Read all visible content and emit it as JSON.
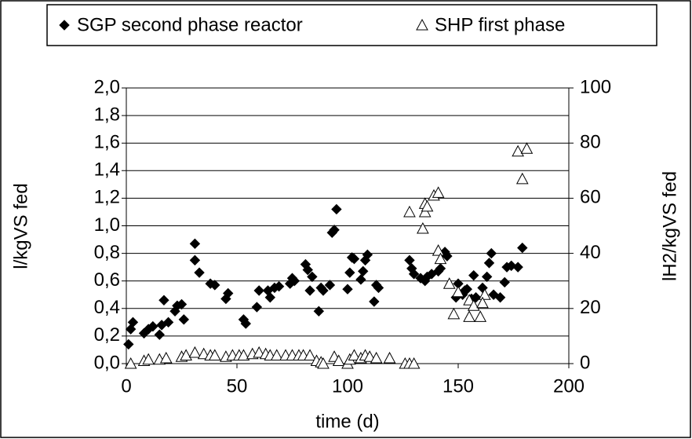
{
  "chart_data": {
    "type": "scatter",
    "xlabel": "time (d)",
    "ylabel": "l/kgVS fed",
    "y2label": "lH2/kgVS fed",
    "xlim": [
      0,
      200
    ],
    "xticks": [
      0,
      50,
      100,
      150,
      200
    ],
    "ylim": [
      0,
      2
    ],
    "yticks": [
      {
        "value": 0,
        "label": "0,0"
      },
      {
        "value": 0.2,
        "label": "0,2"
      },
      {
        "value": 0.4,
        "label": "0,4"
      },
      {
        "value": 0.6,
        "label": "0,6"
      },
      {
        "value": 0.8,
        "label": "0,8"
      },
      {
        "value": 1.0,
        "label": "1,0"
      },
      {
        "value": 1.2,
        "label": "1,2"
      },
      {
        "value": 1.4,
        "label": "1,4"
      },
      {
        "value": 1.6,
        "label": "1,6"
      },
      {
        "value": 1.8,
        "label": "1,8"
      },
      {
        "value": 2.0,
        "label": "2,0"
      }
    ],
    "y2lim": [
      0,
      100
    ],
    "y2ticks": [
      0,
      20,
      40,
      60,
      80,
      100
    ],
    "grid": true,
    "legend": "top",
    "series": [
      {
        "name": "SGP second phase reactor",
        "color": "#000000",
        "marker": "diamond",
        "x": [
          1,
          2,
          3,
          8,
          10,
          12,
          15,
          16,
          17,
          19,
          22,
          23,
          25,
          26,
          31,
          31,
          33,
          38,
          40,
          45,
          46,
          53,
          54,
          59,
          60,
          64,
          65,
          67,
          69,
          74,
          75,
          76,
          81,
          82,
          83,
          84,
          87,
          88,
          89,
          92,
          93,
          94,
          95,
          100,
          101,
          102,
          103,
          106,
          107,
          108,
          109,
          112,
          113,
          114,
          128,
          129,
          130,
          133,
          135,
          136,
          138,
          141,
          142,
          144,
          145,
          149,
          150,
          152,
          153,
          154,
          156,
          157,
          158,
          161,
          163,
          164,
          165,
          166,
          169,
          171,
          172,
          174,
          177,
          179
        ],
        "values": [
          0.14,
          0.25,
          0.3,
          0.22,
          0.25,
          0.27,
          0.21,
          0.28,
          0.46,
          0.3,
          0.38,
          0.42,
          0.43,
          0.32,
          0.87,
          0.75,
          0.66,
          0.58,
          0.57,
          0.47,
          0.51,
          0.32,
          0.29,
          0.41,
          0.53,
          0.53,
          0.48,
          0.55,
          0.56,
          0.58,
          0.62,
          0.6,
          0.72,
          0.68,
          0.53,
          0.63,
          0.38,
          0.55,
          0.53,
          0.57,
          0.95,
          0.97,
          1.12,
          0.54,
          0.66,
          0.77,
          0.76,
          0.61,
          0.67,
          0.75,
          0.79,
          0.45,
          0.57,
          0.55,
          0.75,
          0.69,
          0.65,
          0.62,
          0.6,
          0.63,
          0.65,
          0.67,
          0.69,
          0.81,
          0.78,
          0.48,
          0.58,
          0.5,
          0.53,
          0.54,
          0.47,
          0.64,
          0.48,
          0.55,
          0.63,
          0.73,
          0.8,
          0.5,
          0.48,
          0.59,
          0.7,
          0.71,
          0.7,
          0.84
        ]
      },
      {
        "name": "SHP first phase",
        "color": "#ffffff",
        "marker": "triangle",
        "axis": "y2",
        "x": [
          2,
          8,
          10,
          15,
          18,
          25,
          27,
          31,
          35,
          38,
          40,
          45,
          48,
          51,
          53,
          57,
          60,
          63,
          65,
          68,
          72,
          75,
          78,
          80,
          83,
          86,
          88,
          89,
          94,
          96,
          100,
          101,
          103,
          106,
          108,
          110,
          113,
          119,
          126,
          128,
          130,
          128,
          135,
          134,
          135,
          136,
          139,
          141,
          141,
          142,
          146,
          150,
          148,
          155,
          155,
          157,
          160,
          162,
          161,
          177,
          179,
          181
        ],
        "values": [
          0,
          1,
          1.5,
          1.5,
          2,
          2.5,
          3,
          4,
          3.5,
          3,
          3,
          2.5,
          3,
          3,
          3,
          3.5,
          4,
          3.5,
          3,
          3,
          3,
          3,
          3,
          3,
          3,
          1,
          0.5,
          0,
          2.5,
          1,
          0,
          1.5,
          3,
          2,
          3,
          2.5,
          2,
          2,
          0,
          0,
          0,
          55,
          55,
          49,
          58,
          57,
          61,
          62,
          41,
          38,
          29,
          26,
          18,
          23,
          17,
          21,
          17,
          25,
          22,
          77,
          67,
          78
        ]
      }
    ]
  }
}
